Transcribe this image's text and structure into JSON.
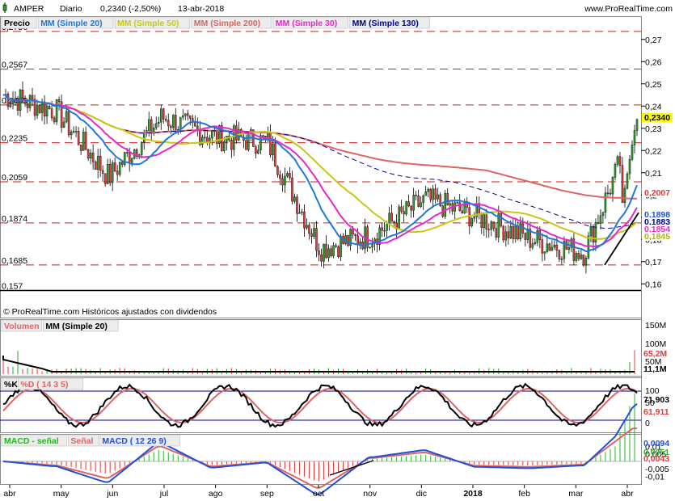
{
  "header": {
    "symbol": "AMPER",
    "period": "Diario",
    "quote": "0,2340 (-2,50%)",
    "date": "13-abr-2018",
    "site": "www.ProRealTime.com"
  },
  "price_panel": {
    "legend": [
      {
        "label": "Precio",
        "color": "#000000"
      },
      {
        "label": "MM (Simple 20)",
        "color": "#1e78dc"
      },
      {
        "label": "MM (Simple 50)",
        "color": "#c8c814"
      },
      {
        "label": "MM (Simple 200)",
        "color": "#dc6464"
      },
      {
        "label": "MM (Simple 30)",
        "color": "#e628c8"
      },
      {
        "label": "MM (Simple 130)",
        "color": "#000096"
      }
    ],
    "y_ticks": [
      "0,27",
      "0,26",
      "0,25",
      "0,24",
      "0,23",
      "0,22",
      "0,21",
      "0,2",
      "0,19",
      "0,18",
      "0,17",
      "0,16"
    ],
    "level_labels": [
      "0,2736",
      "0,2567",
      "0,2405",
      "0,2235",
      "0,2059",
      "0,1874",
      "0,1685",
      "0,157"
    ],
    "value_tags": [
      {
        "text": "0,2340",
        "color": "#000000",
        "bg": "#ffff00"
      },
      {
        "text": "0,2007",
        "color": "#dc3c3c",
        "bg": "#ffffff"
      },
      {
        "text": "0,1898",
        "color": "#1e50dc",
        "bg": "#ffffff"
      },
      {
        "text": "0,1883",
        "color": "#000096",
        "bg": "#ffffff"
      },
      {
        "text": "0,1854",
        "color": "#e628c8",
        "bg": "#ffffff"
      },
      {
        "text": "0,1845",
        "color": "#b4b400",
        "bg": "#ffffff"
      }
    ],
    "footnote": "© ProRealTime.com  Históricos ajustados con dividendos"
  },
  "volume_panel": {
    "legend": [
      {
        "label": "Volumen",
        "color": "#dc6464"
      },
      {
        "label": "MM (Simple 20)",
        "color": "#000000"
      }
    ],
    "y_ticks": [
      "150M",
      "100M",
      "50M"
    ],
    "value_tags": [
      {
        "text": "65,2M",
        "color": "#dc3c3c"
      },
      {
        "text": "11,1M",
        "color": "#000000"
      }
    ]
  },
  "stoch_panel": {
    "legend": [
      {
        "label": "%K",
        "color": "#000000"
      },
      {
        "label": "%D ( 14 3 5)",
        "color": "#dc6464"
      }
    ],
    "y_ticks": [
      "100",
      "50",
      "0"
    ],
    "value_tags": [
      {
        "text": "71,903",
        "color": "#000000"
      },
      {
        "text": "61,911",
        "color": "#dc3c3c"
      }
    ]
  },
  "macd_panel": {
    "legend": [
      {
        "label": "MACD - señal",
        "color": "#28b428"
      },
      {
        "label": "Señal",
        "color": "#dc6464"
      },
      {
        "label": "MACD ( 12 26 9)",
        "color": "#1e50dc"
      }
    ],
    "y_ticks": [
      "0,01",
      "0,005",
      "-0,005",
      "-0,01"
    ],
    "value_tags": [
      {
        "text": "0,0094",
        "color": "#1e50dc"
      },
      {
        "text": "0,0051",
        "color": "#28b428"
      },
      {
        "text": "0,0043",
        "color": "#dc3c3c"
      }
    ]
  },
  "x_axis": {
    "labels": [
      "abr",
      "may",
      "jun",
      "jul",
      "ago",
      "sep",
      "oct",
      "nov",
      "dic",
      "2018",
      "feb",
      "mar",
      "abr"
    ]
  },
  "chart_data": {
    "type": "candlestick",
    "title": "AMPER Diario",
    "ylim": [
      0.155,
      0.275
    ],
    "x_range": [
      "abr-2017",
      "abr-2018"
    ],
    "grid": false,
    "last_close": 0.234,
    "horizontal_levels": [
      0.2736,
      0.2567,
      0.2405,
      0.2235,
      0.2059,
      0.1874,
      0.1685,
      0.157
    ],
    "ma_last": {
      "sma200": 0.2007,
      "sma20": 0.1898,
      "sma130": 0.1883,
      "sma30": 0.1854,
      "sma50": 0.1845
    },
    "approx_monthly_close": [
      {
        "month": "abr",
        "close": 0.245
      },
      {
        "month": "may",
        "close": 0.238
      },
      {
        "month": "jun",
        "close": 0.208
      },
      {
        "month": "jul",
        "close": 0.235
      },
      {
        "month": "ago",
        "close": 0.226
      },
      {
        "month": "sep",
        "close": 0.224
      },
      {
        "month": "oct",
        "close": 0.176
      },
      {
        "month": "nov",
        "close": 0.182
      },
      {
        "month": "dic",
        "close": 0.198
      },
      {
        "month": "2018",
        "close": 0.19
      },
      {
        "month": "feb",
        "close": 0.18
      },
      {
        "month": "mar",
        "close": 0.174
      },
      {
        "month": "abr",
        "close": 0.234
      }
    ]
  }
}
